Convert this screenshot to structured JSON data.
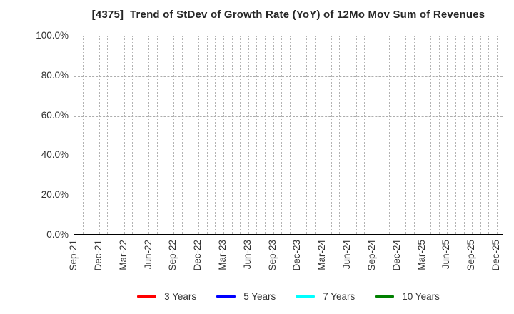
{
  "page": {
    "background": "#ffffff"
  },
  "chart_data": {
    "type": "line",
    "title": "[4375]  Trend of StDev of Growth Rate (YoY) of 12Mo Mov Sum of Revenues",
    "title_color": "#262626",
    "x_tick_labels": [
      "Sep-21",
      "Dec-21",
      "Mar-22",
      "Jun-22",
      "Sep-22",
      "Dec-22",
      "Mar-23",
      "Jun-23",
      "Sep-23",
      "Dec-23",
      "Mar-24",
      "Jun-24",
      "Sep-24",
      "Dec-24",
      "Mar-25",
      "Jun-25",
      "Sep-25",
      "Dec-25"
    ],
    "months_total": 52,
    "months_per_tick": 3,
    "y_tick_labels": [
      "0.0%",
      "20.0%",
      "40.0%",
      "60.0%",
      "80.0%",
      "100.0%"
    ],
    "y_tick_values": [
      0,
      20,
      40,
      60,
      80,
      100
    ],
    "ylim": [
      0,
      100
    ],
    "grid": {
      "visible": true,
      "vertical": "dotted-monthly",
      "horizontal": "dashed-every-20pct",
      "color": "#b3b3b3"
    },
    "axis_color": "#000000",
    "tick_label_color": "#333333",
    "legend_position": "bottom-center",
    "series": [
      {
        "name": "3 Years",
        "color": "#ff0000",
        "values": []
      },
      {
        "name": "5 Years",
        "color": "#0000ff",
        "values": []
      },
      {
        "name": "7 Years",
        "color": "#00ffff",
        "values": []
      },
      {
        "name": "10 Years",
        "color": "#008000",
        "values": []
      }
    ]
  }
}
